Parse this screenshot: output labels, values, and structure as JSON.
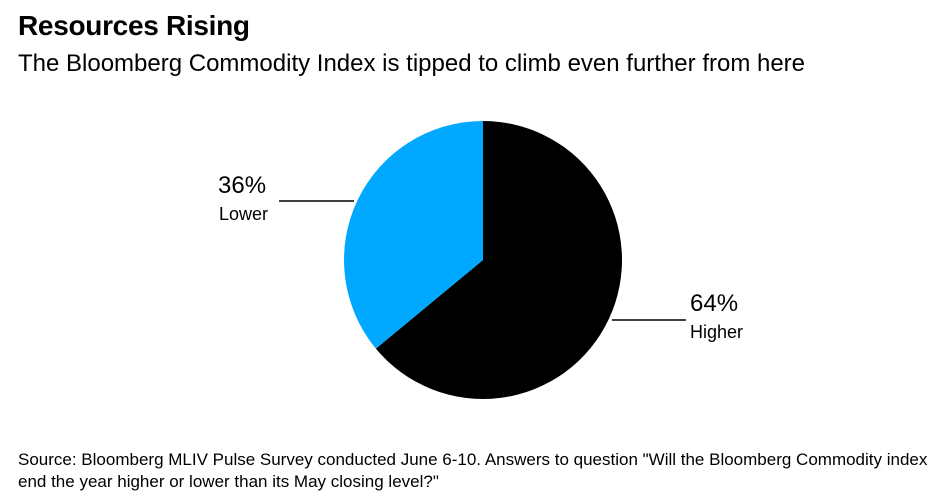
{
  "title": "Resources Rising",
  "subtitle": "The Bloomberg Commodity Index is tipped to climb even further from here",
  "chart_data": {
    "type": "pie",
    "title": "Resources Rising",
    "subtitle": "The Bloomberg Commodity Index is tipped to climb even further from here",
    "categories": [
      "Higher",
      "Lower"
    ],
    "values": [
      64,
      36
    ],
    "labels": [
      "64%",
      "36%"
    ],
    "colors": [
      "#000000",
      "#00a9ff"
    ]
  },
  "source": "Source: Bloomberg MLIV Pulse Survey conducted June 6-10. Answers to question \"Will the Bloomberg Commodity index end the year higher or lower than its May closing level?\""
}
